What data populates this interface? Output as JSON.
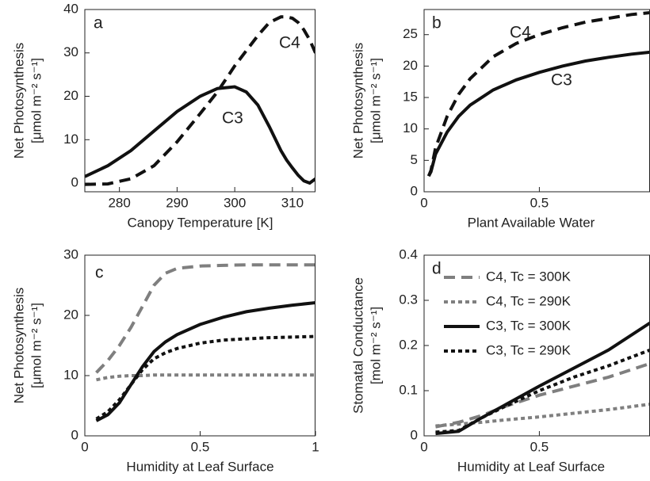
{
  "chart_data": [
    {
      "type": "line",
      "panel_label": "a",
      "x_label": "Canopy Temperature [K]",
      "y_label": [
        "Net Photosynthesis",
        "[μmol m⁻² s⁻¹]"
      ],
      "xlim": [
        274,
        314
      ],
      "ylim": [
        -2,
        40
      ],
      "xticks": [
        280,
        290,
        300,
        310
      ],
      "yticks": [
        0,
        10,
        20,
        30,
        40
      ],
      "legend": false,
      "annotations": [
        "C4",
        "C3"
      ],
      "x": [
        274,
        278,
        282,
        286,
        290,
        294,
        297,
        300,
        302,
        304,
        306,
        308,
        309,
        310,
        311,
        312,
        313,
        314
      ],
      "series": [
        {
          "name": "C3",
          "color": "#111111",
          "style": "solid",
          "values": [
            1.5,
            4,
            7.5,
            12,
            16.5,
            20,
            21.8,
            22.2,
            21,
            18,
            13,
            7.5,
            5.3,
            3.5,
            1.8,
            0.5,
            0,
            1
          ]
        },
        {
          "name": "C4",
          "color": "#111111",
          "style": "dashed",
          "values": [
            -0.3,
            -0.2,
            1,
            4,
            9.5,
            16,
            21,
            27,
            30.5,
            34,
            37,
            38.3,
            38.3,
            38,
            37,
            35.3,
            33,
            30
          ]
        }
      ]
    },
    {
      "type": "line",
      "panel_label": "b",
      "x_label": "Plant Available Water",
      "y_label": [
        "Net Photosynthesis",
        "[μmol m⁻² s⁻¹]"
      ],
      "xlim": [
        0,
        0.98
      ],
      "ylim": [
        0,
        29
      ],
      "xticks": [
        0,
        0.5
      ],
      "yticks": [
        0,
        5,
        10,
        15,
        20,
        25
      ],
      "legend": false,
      "annotations": [
        "C4",
        "C3"
      ],
      "x": [
        0.02,
        0.03,
        0.05,
        0.1,
        0.15,
        0.2,
        0.3,
        0.4,
        0.5,
        0.6,
        0.7,
        0.8,
        0.9,
        0.98
      ],
      "series": [
        {
          "name": "C3",
          "color": "#111111",
          "style": "solid",
          "values": [
            2.5,
            3.2,
            6,
            9.5,
            12,
            13.8,
            16.2,
            17.8,
            19,
            20,
            20.8,
            21.4,
            21.9,
            22.2
          ]
        },
        {
          "name": "C4",
          "color": "#111111",
          "style": "dashed",
          "values": [
            2.5,
            3.4,
            7,
            12,
            15.5,
            18,
            21.5,
            23.6,
            25,
            26.1,
            27,
            27.6,
            28.2,
            28.5
          ]
        }
      ]
    },
    {
      "type": "line",
      "panel_label": "c",
      "x_label": "Humidity at Leaf Surface",
      "y_label": [
        "Net Photosynthesis",
        "[μmol m⁻² s⁻¹]"
      ],
      "xlim": [
        0,
        1
      ],
      "ylim": [
        0,
        30
      ],
      "xticks": [
        0,
        0.5,
        1
      ],
      "yticks": [
        0,
        10,
        20,
        30
      ],
      "legend": false,
      "annotations": [],
      "x": [
        0.05,
        0.1,
        0.15,
        0.2,
        0.25,
        0.3,
        0.35,
        0.4,
        0.5,
        0.6,
        0.7,
        0.8,
        0.9,
        1
      ],
      "series": [
        {
          "name": "C4, Tc = 300K",
          "color": "#7f7f7f",
          "style": "dashed",
          "values": [
            10.5,
            12.5,
            15,
            18,
            21.5,
            25,
            27,
            27.8,
            28.2,
            28.3,
            28.4,
            28.4,
            28.4,
            28.4
          ]
        },
        {
          "name": "C4, Tc = 290K",
          "color": "#7f7f7f",
          "style": "dotted",
          "values": [
            9.3,
            9.7,
            9.9,
            10,
            10,
            10.1,
            10.1,
            10.1,
            10.1,
            10.1,
            10.1,
            10.1,
            10.1,
            10.1
          ]
        },
        {
          "name": "C3, Tc = 300K",
          "color": "#111111",
          "style": "solid",
          "values": [
            2.5,
            3.5,
            5.5,
            8.5,
            11.5,
            14,
            15.6,
            16.8,
            18.5,
            19.7,
            20.6,
            21.2,
            21.7,
            22.1
          ]
        },
        {
          "name": "C3, Tc = 290K",
          "color": "#111111",
          "style": "dotted",
          "values": [
            2.8,
            4,
            6,
            8.5,
            11,
            12.8,
            13.8,
            14.5,
            15.4,
            15.9,
            16.1,
            16.3,
            16.4,
            16.5
          ]
        }
      ]
    },
    {
      "type": "line",
      "panel_label": "d",
      "x_label": "Humidity at Leaf Surface",
      "y_label": [
        "Stomatal Conductance",
        "[mol m⁻² s⁻¹]"
      ],
      "xlim": [
        0,
        0.98
      ],
      "ylim": [
        0,
        0.4
      ],
      "xticks": [
        0,
        0.5
      ],
      "yticks": [
        0,
        0.1,
        0.2,
        0.3,
        0.4
      ],
      "legend": "upper left",
      "annotations": [],
      "x": [
        0.05,
        0.15,
        0.25,
        0.35,
        0.5,
        0.65,
        0.8,
        0.98
      ],
      "series": [
        {
          "name": "C4, Tc = 300K",
          "color": "#7f7f7f",
          "style": "dashed",
          "values": [
            0.02,
            0.03,
            0.045,
            0.065,
            0.09,
            0.11,
            0.13,
            0.16
          ]
        },
        {
          "name": "C4, Tc = 290K",
          "color": "#7f7f7f",
          "style": "dotted",
          "values": [
            0.022,
            0.026,
            0.03,
            0.035,
            0.042,
            0.05,
            0.058,
            0.07
          ]
        },
        {
          "name": "C3, Tc = 300K",
          "color": "#111111",
          "style": "solid",
          "values": [
            0.005,
            0.01,
            0.04,
            0.068,
            0.11,
            0.15,
            0.19,
            0.25
          ]
        },
        {
          "name": "C3, Tc = 290K",
          "color": "#111111",
          "style": "dotted",
          "values": [
            0.008,
            0.012,
            0.04,
            0.065,
            0.1,
            0.13,
            0.155,
            0.19
          ]
        }
      ]
    }
  ]
}
